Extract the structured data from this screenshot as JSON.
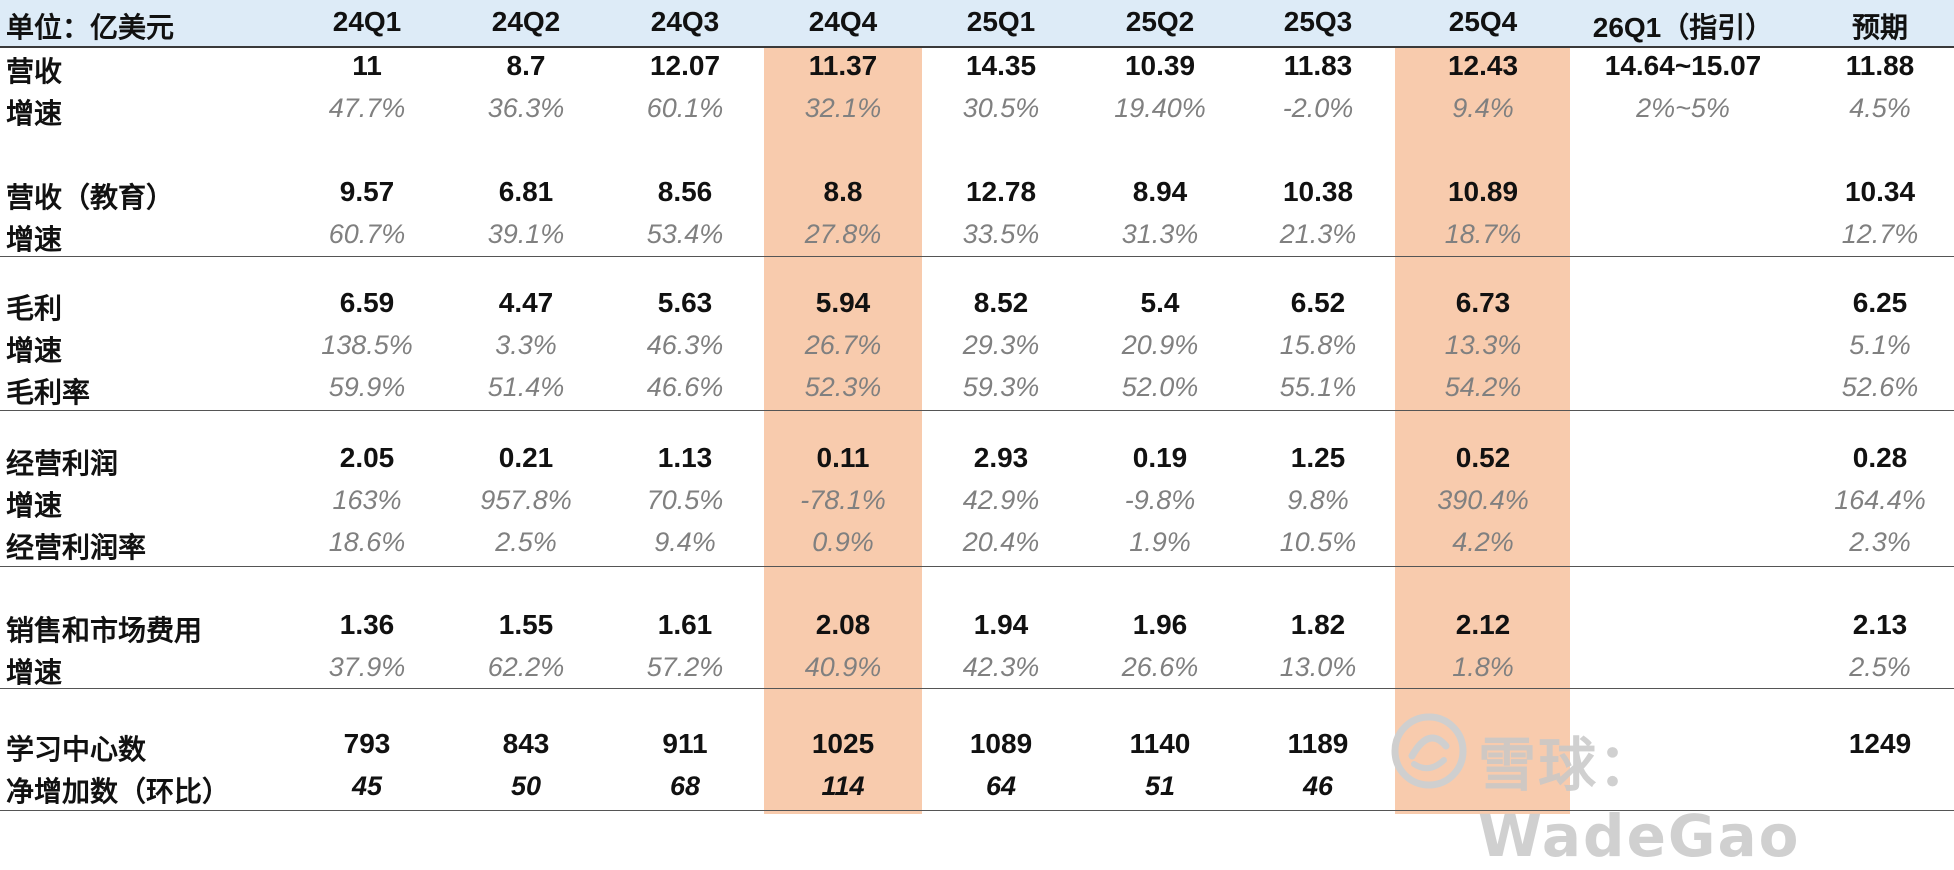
{
  "unit_label": "单位：亿美元",
  "columns": [
    "24Q1",
    "24Q2",
    "24Q3",
    "24Q4",
    "25Q1",
    "25Q2",
    "25Q3",
    "25Q4",
    "26Q1（指引）",
    "预期"
  ],
  "highlight_columns": [
    "24Q4",
    "25Q4"
  ],
  "colors": {
    "header_bg": "#ddebf7",
    "highlight": "#f8cbad",
    "muted_text": "#808080"
  },
  "sections": [
    {
      "rows": [
        {
          "label": "营收",
          "style": "bold",
          "values": [
            "11",
            "8.7",
            "12.07",
            "11.37",
            "14.35",
            "10.39",
            "11.83",
            "12.43",
            "14.64~15.07",
            "11.88"
          ]
        },
        {
          "label": "增速",
          "style": "italic",
          "values": [
            "47.7%",
            "36.3%",
            "60.1%",
            "32.1%",
            "30.5%",
            "19.40%",
            "-2.0%",
            "9.4%",
            "2%~5%",
            "4.5%"
          ]
        }
      ]
    },
    {
      "rows": [
        {
          "label": "营收（教育）",
          "style": "bold",
          "values": [
            "9.57",
            "6.81",
            "8.56",
            "8.8",
            "12.78",
            "8.94",
            "10.38",
            "10.89",
            "",
            "10.34"
          ]
        },
        {
          "label": "增速",
          "style": "italic",
          "values": [
            "60.7%",
            "39.1%",
            "53.4%",
            "27.8%",
            "33.5%",
            "31.3%",
            "21.3%",
            "18.7%",
            "",
            "12.7%"
          ]
        }
      ]
    },
    {
      "rows": [
        {
          "label": "毛利",
          "style": "bold",
          "values": [
            "6.59",
            "4.47",
            "5.63",
            "5.94",
            "8.52",
            "5.4",
            "6.52",
            "6.73",
            "",
            "6.25"
          ]
        },
        {
          "label": "增速",
          "style": "italic",
          "values": [
            "138.5%",
            "3.3%",
            "46.3%",
            "26.7%",
            "29.3%",
            "20.9%",
            "15.8%",
            "13.3%",
            "",
            "5.1%"
          ]
        },
        {
          "label": "毛利率",
          "style": "italic",
          "values": [
            "59.9%",
            "51.4%",
            "46.6%",
            "52.3%",
            "59.3%",
            "52.0%",
            "55.1%",
            "54.2%",
            "",
            "52.6%"
          ]
        }
      ]
    },
    {
      "rows": [
        {
          "label": "经营利润",
          "style": "bold",
          "values": [
            "2.05",
            "0.21",
            "1.13",
            "0.11",
            "2.93",
            "0.19",
            "1.25",
            "0.52",
            "",
            "0.28"
          ]
        },
        {
          "label": "增速",
          "style": "italic",
          "values": [
            "163%",
            "957.8%",
            "70.5%",
            "-78.1%",
            "42.9%",
            "-9.8%",
            "9.8%",
            "390.4%",
            "",
            "164.4%"
          ]
        },
        {
          "label": "经营利润率",
          "style": "italic",
          "values": [
            "18.6%",
            "2.5%",
            "9.4%",
            "0.9%",
            "20.4%",
            "1.9%",
            "10.5%",
            "4.2%",
            "",
            "2.3%"
          ]
        }
      ]
    },
    {
      "rows": [
        {
          "label": "销售和市场费用",
          "style": "bold",
          "values": [
            "1.36",
            "1.55",
            "1.61",
            "2.08",
            "1.94",
            "1.96",
            "1.82",
            "2.12",
            "",
            "2.13"
          ]
        },
        {
          "label": "增速",
          "style": "italic",
          "values": [
            "37.9%",
            "62.2%",
            "57.2%",
            "40.9%",
            "42.3%",
            "26.6%",
            "13.0%",
            "1.8%",
            "",
            "2.5%"
          ]
        }
      ]
    },
    {
      "rows": [
        {
          "label": "学习中心数",
          "style": "bold",
          "values": [
            "793",
            "843",
            "911",
            "1025",
            "1089",
            "1140",
            "1189",
            "",
            "",
            "1249"
          ]
        },
        {
          "label": "净增加数（环比）",
          "style": "bold-italic",
          "values": [
            "45",
            "50",
            "68",
            "114",
            "64",
            "51",
            "46",
            "",
            "",
            ""
          ]
        }
      ]
    }
  ],
  "watermark": {
    "text": "雪球：WadeGao",
    "icon": "snowball-logo-icon"
  }
}
